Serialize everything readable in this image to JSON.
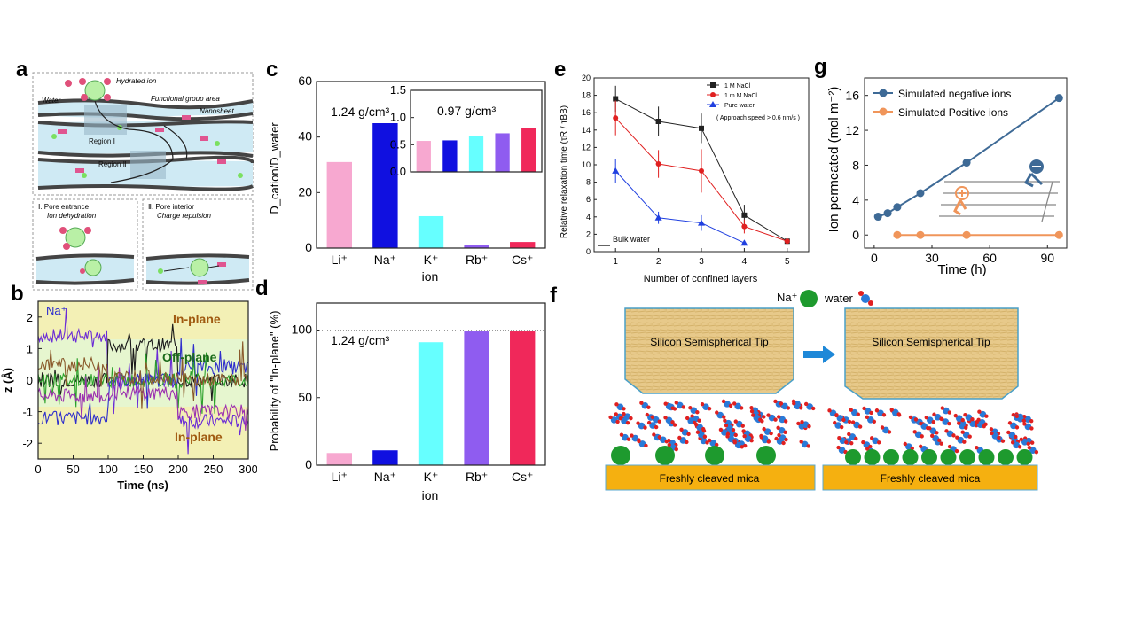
{
  "panel_labels": {
    "a": "a",
    "b": "b",
    "c": "c",
    "d": "d",
    "e": "e",
    "f": "f",
    "g": "g"
  },
  "panel_a": {
    "water": "Water",
    "hydrated_ion": "Hydrated ion",
    "functional_group": "Functional group area",
    "nanosheet": "Nanosheet",
    "region1": "Region Ⅰ",
    "region2": "Region Ⅱ",
    "sub1_title": "Ⅰ. Pore entrance",
    "sub1_sub": "Ion dehydration",
    "sub2_title": "Ⅱ. Pore interior",
    "sub2_sub": "Charge repulsion"
  },
  "panel_b": {
    "ion": "Na⁺",
    "in_plane_top": "In-plane",
    "off_plane": "Off-plane",
    "in_plane_bottom": "In-plane"
  },
  "panel_f": {
    "na_label": "Na⁺",
    "water_label": "water",
    "tip_label": "Silicon Semispherical Tip",
    "mica_label": "Freshly cleaved mica"
  },
  "chart_data": [
    {
      "id": "b",
      "type": "line",
      "xlabel": "Time (ns)",
      "ylabel": "z (Å)",
      "xlim": [
        0,
        300
      ],
      "ylim": [
        -2.5,
        2.5
      ],
      "xticks": [
        0,
        50,
        100,
        150,
        200,
        250,
        300
      ],
      "yticks": [
        -2,
        -1,
        0,
        1,
        2
      ],
      "colors": [
        "#6a2bd6",
        "#1a1a1a",
        "#2e2ecc",
        "#2aa02a",
        "#9b2fb0",
        "#8a5a2b"
      ]
    },
    {
      "id": "c",
      "type": "bar",
      "ylabel": "D_cation/D_water",
      "xlabel": "ion",
      "categories": [
        "Li⁺",
        "Na⁺",
        "K⁺",
        "Rb⁺",
        "Cs⁺"
      ],
      "values": [
        31,
        45,
        11.5,
        1.2,
        2.2
      ],
      "colors": [
        "#f7a8d0",
        "#1010e0",
        "#66ffff",
        "#8f5cf0",
        "#f0285a"
      ],
      "ylim": [
        0,
        60
      ],
      "yticks": [
        0,
        20,
        40,
        60
      ],
      "annotation": "1.24 g/cm³",
      "inset": {
        "values": [
          0.57,
          0.58,
          0.66,
          0.71,
          0.8
        ],
        "ylim": [
          0,
          1.5
        ],
        "yticks": [
          "0.0",
          "0.5",
          "1.0",
          "1.5"
        ],
        "annotation": "0.97 g/cm³"
      }
    },
    {
      "id": "d",
      "type": "bar",
      "ylabel": "Probability of \"In-plane\" (%)",
      "xlabel": "ion",
      "categories": [
        "Li⁺",
        "Na⁺",
        "K⁺",
        "Rb⁺",
        "Cs⁺"
      ],
      "values": [
        9,
        11,
        91,
        99,
        99
      ],
      "colors": [
        "#f7a8d0",
        "#1010e0",
        "#66ffff",
        "#8f5cf0",
        "#f0285a"
      ],
      "ylim": [
        0,
        120
      ],
      "yticks": [
        0,
        50,
        100
      ],
      "annotation": "1.24 g/cm³"
    },
    {
      "id": "e",
      "type": "line",
      "xlabel": "Number of confined layers",
      "ylabel": "Relative relaxation time (τR / τBB)",
      "xlim": [
        0.5,
        5.5
      ],
      "ylim": [
        0,
        20
      ],
      "xticks": [
        1,
        2,
        3,
        4,
        5
      ],
      "yticks": [
        0,
        2,
        4,
        6,
        8,
        10,
        12,
        14,
        16,
        18,
        20
      ],
      "bulk_label": "Bulk water",
      "legend_note": "( Approach speed > 0.6 nm/s )",
      "series": [
        {
          "name": "1 M NaCl",
          "color": "#222222",
          "marker": "square",
          "x": [
            1,
            2,
            3,
            4,
            5
          ],
          "y": [
            17.6,
            15.0,
            14.2,
            4.2,
            1.2
          ],
          "err": [
            1.5,
            1.7,
            1.7,
            1.2,
            0.2
          ]
        },
        {
          "name": "1 m M NaCl",
          "color": "#e02020",
          "marker": "circle",
          "x": [
            1,
            2,
            3,
            4,
            5
          ],
          "y": [
            15.4,
            10.1,
            9.3,
            2.9,
            1.2
          ],
          "err": [
            2.0,
            1.6,
            2.5,
            0.8,
            0.2
          ]
        },
        {
          "name": "Pure water",
          "color": "#2040e0",
          "marker": "triangle",
          "x": [
            1,
            2,
            3,
            4
          ],
          "y": [
            9.3,
            3.9,
            3.3,
            1.0
          ],
          "err": [
            1.4,
            0.7,
            0.9,
            0.3
          ]
        }
      ]
    },
    {
      "id": "g",
      "type": "line",
      "xlabel": "Time (h)",
      "ylabel": "Ion permeated (mol m⁻²)",
      "xlim": [
        -5,
        100
      ],
      "ylim": [
        -1.5,
        18
      ],
      "xticks": [
        0,
        30,
        60,
        90
      ],
      "yticks": [
        0,
        4,
        8,
        12,
        16
      ],
      "series": [
        {
          "name": "Simulated negative ions",
          "color": "#3e6a96",
          "x": [
            2,
            7,
            12,
            24,
            48,
            96
          ],
          "y": [
            2.1,
            2.5,
            3.2,
            4.8,
            8.3,
            15.7
          ]
        },
        {
          "name": "Simulated Positive ions",
          "color": "#f0955a",
          "x": [
            12,
            24,
            48,
            96
          ],
          "y": [
            0,
            0,
            0,
            0
          ]
        }
      ]
    }
  ]
}
